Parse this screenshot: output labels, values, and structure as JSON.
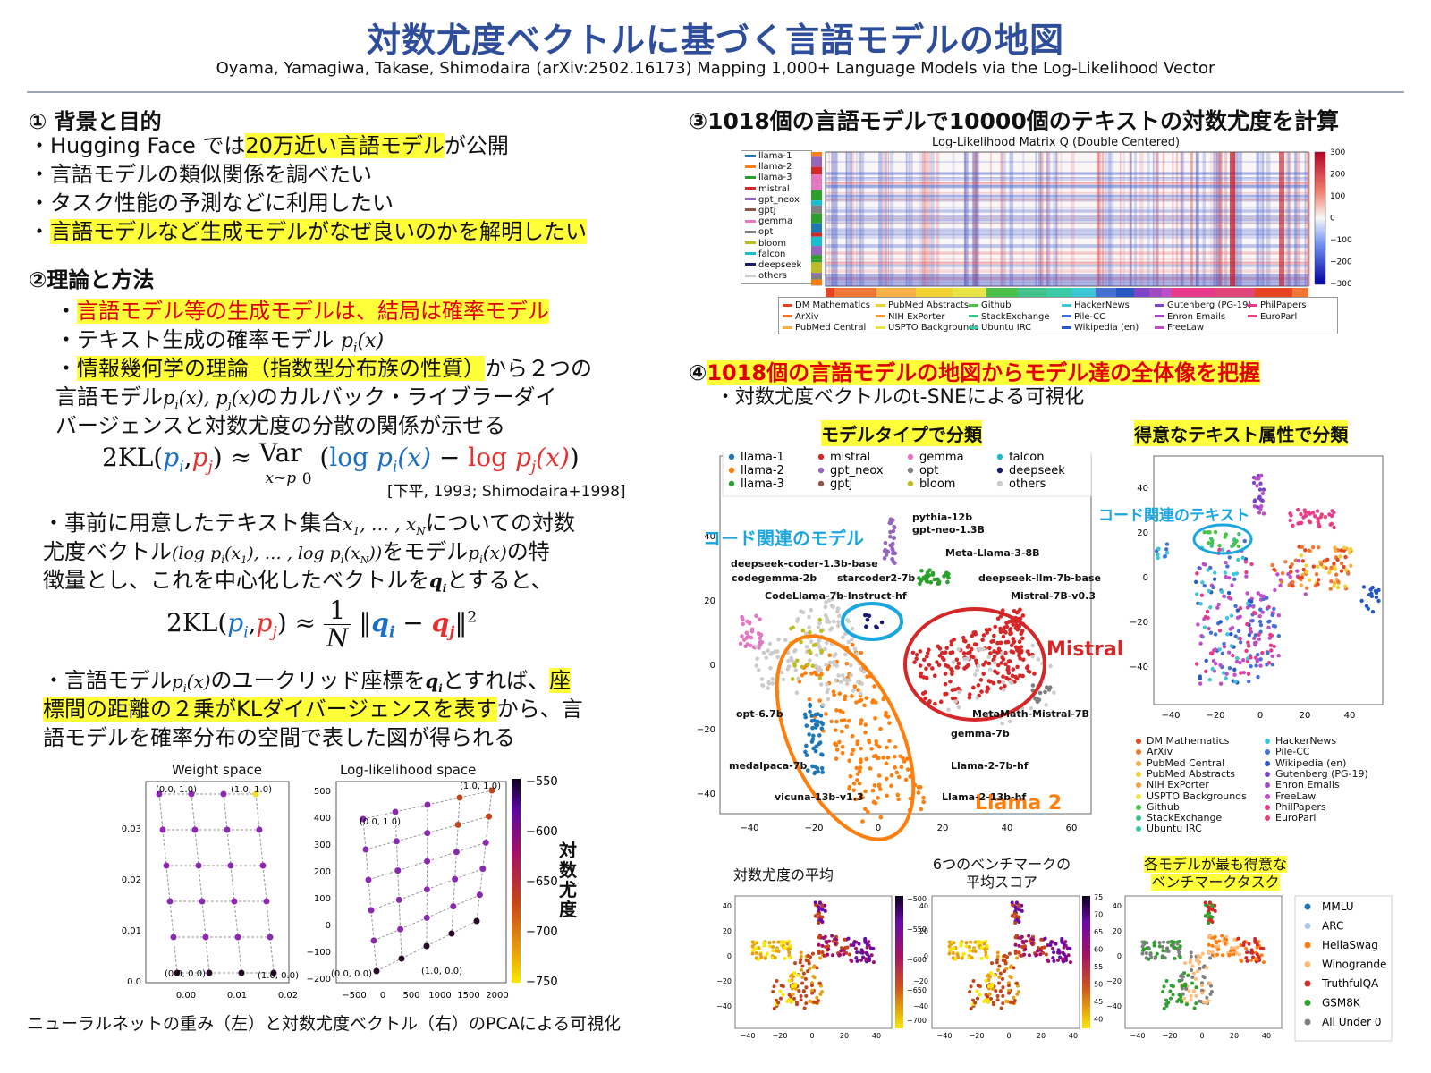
{
  "header": {
    "title": "対数尤度ベクトルに基づく言語モデルの地図",
    "authors": "Oyama, Yamagiwa, Takase, Shimodaira (arXiv:2502.16173) Mapping 1,000+ Language Models via the Log-Likelihood Vector"
  },
  "s1": {
    "heading": "① 背景と目的",
    "l1a": "・Hugging Face では",
    "l1b": "20万近い言語モデル",
    "l1c": "が公開",
    "l2": "・言語モデルの類似関係を調べたい",
    "l3": "・タスク性能の予測などに利用したい",
    "l4a": "・",
    "l4b": "言語モデルなど生成モデルがなぜ良いのかを解明したい"
  },
  "s2": {
    "heading": "②理論と方法",
    "l1a": "・",
    "l1b": "言語モデル等の生成モデルは、結局は確率モデル",
    "l2": "・テキスト生成の確率モデル",
    "l2m": "p",
    "l3a": "・",
    "l3b": "情報幾何学の理論（指数型分布族の性質）",
    "l3c": "から２つの",
    "l4a": "言語モデル",
    "l4b": "のカルバック・ライブラーダイ",
    "l5": "バージェンスと対数尤度の分散の関係が示せる",
    "eq1_lhs": "2KL",
    "eq1_var": "Var",
    "eq1_sub": "x~p",
    "eq1_log": "log",
    "cite": "[下平, 1993; Shimodaira+1998]",
    "p2a": "・事前に用意したテキスト集合",
    "p2b": "についての対数",
    "p2c": "尤度ベクトル",
    "p2d": "をモデル",
    "p2e": "の特",
    "p2f": "徴量とし、これを中心化したベクトルを",
    "p2g": "とすると、",
    "eq2_lhs": "2KL",
    "eq2_frac_num": "1",
    "eq2_frac_den": "N",
    "p3a": "・言語モデル",
    "p3b": "のユークリッド座標を",
    "p3c": "とすれば、",
    "p3d": "座",
    "p3e": "標間の距離の２乗がKLダイバージェンスを表す",
    "p3f": "から、言",
    "p3g": "語モデルを確率分布の空間で表した図が得られる",
    "fig_left_title": "Weight space",
    "fig_right_title": "Log-likelihood space",
    "colorbar_label": "対数尤度",
    "cb_ticks": [
      "−550",
      "−600",
      "−650",
      "−700",
      "−750"
    ],
    "left_yticks": [
      "0.03",
      "0.02",
      "0.01",
      "0.0"
    ],
    "left_xticks": [
      "0.00",
      "0.01",
      "0.02"
    ],
    "right_yticks": [
      "500",
      "400",
      "300",
      "200",
      "100",
      "0",
      "−100",
      "−200"
    ],
    "right_xticks": [
      "−500",
      "0",
      "500",
      "1000",
      "1500",
      "2000"
    ],
    "corner_labels": {
      "tl": "(0.0, 1.0)",
      "tr": "(1.0, 1.0)",
      "bl": "(0.0, 0.0)",
      "br": "(1.0, 0.0)"
    },
    "caption": "ニューラルネットの重み（左）と対数尤度ベクトル（右）のPCAによる可視化"
  },
  "s3": {
    "heading": "③1018個の言語モデルで10000個のテキストの対数尤度を計算",
    "matrix_title": "Log-Likelihood Matrix Q (Double Centered)",
    "model_legend": [
      "llama-1",
      "llama-2",
      "llama-3",
      "mistral",
      "gpt_neox",
      "gptj",
      "gemma",
      "opt",
      "bloom",
      "falcon",
      "deepseek",
      "others"
    ],
    "model_colors": [
      "#1f77b4",
      "#ff7f0e",
      "#2ca02c",
      "#d62728",
      "#9467bd",
      "#8c564b",
      "#e377c2",
      "#7f7f7f",
      "#bcbd22",
      "#17becf",
      "#1a1a6e",
      "#cccccc"
    ],
    "cb_ticks": [
      "300",
      "200",
      "100",
      "0",
      "−100",
      "−200",
      "−300"
    ],
    "text_legend": [
      [
        "DM Mathematics",
        "PubMed Abstracts",
        "Github",
        "HackerNews",
        "Gutenberg (PG-19)",
        "PhilPapers"
      ],
      [
        "ArXiv",
        "NIH ExPorter",
        "StackExchange",
        "Pile-CC",
        "Enron Emails",
        "EuroParl"
      ],
      [
        "PubMed Central",
        "USPTO Backgrounds",
        "Ubuntu IRC",
        "Wikipedia (en)",
        "FreeLaw",
        ""
      ]
    ],
    "text_legend_colors": [
      [
        "#e6451f",
        "#f2d233",
        "#49c24a",
        "#3cc6d6",
        "#7d44c9",
        "#e83a8a"
      ],
      [
        "#ee7733",
        "#f5a13a",
        "#40c28a",
        "#4470d4",
        "#a04bc4",
        "#e0467a"
      ],
      [
        "#f7b046",
        "#e6e446",
        "#3acba6",
        "#2858c4",
        "#c04ec8",
        ""
      ]
    ]
  },
  "s4": {
    "heading_num": "④",
    "heading": "1018個の言語モデルの地図からモデル達の全体像を把握",
    "sub": "・対数尤度ベクトルのt-SNEによる可視化",
    "panel_a_title": "モデルタイプで分類",
    "panel_b_title": "得意なテキスト属性で分類",
    "legend": [
      [
        "llama-1",
        "mistral",
        "gemma",
        "falcon"
      ],
      [
        "llama-2",
        "gpt_neox",
        "opt",
        "deepseek"
      ],
      [
        "llama-3",
        "gptj",
        "bloom",
        "others"
      ]
    ],
    "legend_colors": [
      [
        "#1f77b4",
        "#d62728",
        "#e377c2",
        "#17becf"
      ],
      [
        "#ff7f0e",
        "#9467bd",
        "#7f7f7f",
        "#1a1a6e"
      ],
      [
        "#2ca02c",
        "#8c564b",
        "#bcbd22",
        "#cccccc"
      ]
    ],
    "code_models": "コード関連のモデル",
    "code_texts": "コード関連のテキスト",
    "mistral_label": "Mistral",
    "llama2_label": "Llama 2",
    "annotations": [
      "pythia-12b",
      "gpt-neo-1.3B",
      "Meta-Llama-3-8B",
      "deepseek-coder-1.3b-base",
      "codegemma-2b",
      "starcoder2-7b",
      "deepseek-llm-7b-base",
      "CodeLlama-7b-Instruct-hf",
      "Mistral-7B-v0.3",
      "opt-6.7b",
      "MetaMath-Mistral-7B",
      "gemma-7b",
      "medalpaca-7b",
      "Llama-2-7b-hf",
      "vicuna-13b-v1.3",
      "Llama-2-13b-hf"
    ],
    "a_yticks": [
      "40",
      "20",
      "0",
      "−20",
      "−40"
    ],
    "a_xticks": [
      "−40",
      "−20",
      "0",
      "20",
      "40",
      "60"
    ],
    "b_yticks": [
      "40",
      "20",
      "0",
      "−20",
      "−40"
    ],
    "b_xticks": [
      "−40",
      "−20",
      "0",
      "20",
      "40"
    ],
    "b_legend_left": [
      "DM Mathematics",
      "ArXiv",
      "PubMed Central",
      "PubMed Abstracts",
      "NIH ExPorter",
      "USPTO Backgrounds",
      "Github",
      "StackExchange",
      "Ubuntu IRC"
    ],
    "b_legend_left_colors": [
      "#e6451f",
      "#ee7733",
      "#f7b046",
      "#f2d233",
      "#f5a13a",
      "#e6e446",
      "#49c24a",
      "#40c28a",
      "#3acba6"
    ],
    "b_legend_right": [
      "HackerNews",
      "Pile-CC",
      "Wikipedia (en)",
      "Gutenberg (PG-19)",
      "Enron Emails",
      "FreeLaw",
      "PhilPapers",
      "EuroParl"
    ],
    "b_legend_right_colors": [
      "#3cc6d6",
      "#4470d4",
      "#2858c4",
      "#7d44c9",
      "#a04bc4",
      "#c04ec8",
      "#e83a8a",
      "#e0467a"
    ],
    "small1_title": "対数尤度の平均",
    "small2_title_1": "6つのベンチマークの",
    "small2_title_2": "平均スコア",
    "small3_title_1": "各モデルが最も得意な",
    "small3_title_2": "ベンチマークタスク",
    "small1_cb": [
      "−500",
      "−550",
      "−600",
      "−650",
      "−700"
    ],
    "small2_cb": [
      "75",
      "70",
      "65",
      "60",
      "55",
      "50",
      "45",
      "40"
    ],
    "small_yticks": [
      "40",
      "20",
      "0",
      "−20",
      "−40"
    ],
    "small_xticks": [
      "−40",
      "−20",
      "0",
      "20",
      "40"
    ],
    "bench_legend": [
      "MMLU",
      "ARC",
      "HellaSwag",
      "Winogrande",
      "TruthfulQA",
      "GSM8K",
      "All Under 0"
    ],
    "bench_colors": [
      "#1f77b4",
      "#aec7e8",
      "#ff7f0e",
      "#ffbb78",
      "#d62728",
      "#2ca02c",
      "#7f7f7f"
    ]
  }
}
